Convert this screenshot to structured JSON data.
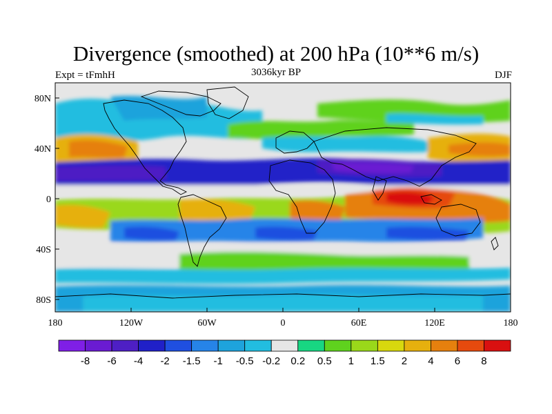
{
  "title": "Divergence (smoothed) at 200 hPa (10**6 m/s)",
  "subtitle_left": "Expt = tFmhH",
  "subtitle_center": "3036kyr BP",
  "subtitle_right": "DJF",
  "axes": {
    "x_ticks": [
      "180",
      "120W",
      "60W",
      "0",
      "60E",
      "120E",
      "180"
    ],
    "y_ticks": [
      "80N",
      "40N",
      "0",
      "40S",
      "80S"
    ]
  },
  "colorbar": {
    "colors": [
      "#7f1fe6",
      "#6a1bd2",
      "#4e1fc4",
      "#2020c8",
      "#1f4fe0",
      "#2684e8",
      "#1ea3dc",
      "#22bde0",
      "#e6e6e6",
      "#18d682",
      "#5fd21e",
      "#9ad81a",
      "#d8d80e",
      "#e6b00e",
      "#e6800e",
      "#e64a0e",
      "#d91010"
    ],
    "labels": [
      "-8",
      "-6",
      "-4",
      "-2",
      "-1.5",
      "-1",
      "-0.5",
      "-0.2",
      "0.2",
      "0.5",
      "1",
      "1.5",
      "2",
      "4",
      "6",
      "8"
    ]
  },
  "colors": {
    "neutral": "#e6e6e6",
    "coast": "#000000"
  }
}
